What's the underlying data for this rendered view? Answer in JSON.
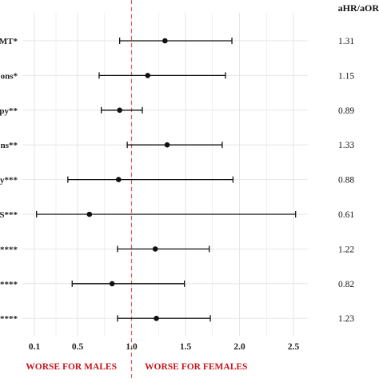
{
  "chart_data": {
    "type": "forest",
    "title": "",
    "column_header": "aHR/aOR",
    "rows": [
      {
        "label": "MT*",
        "estimate": 1.31,
        "ci_low": 0.89,
        "ci_high": 1.93,
        "value_label": "1.31"
      },
      {
        "label": "ons*",
        "estimate": 1.15,
        "ci_low": 0.7,
        "ci_high": 1.87,
        "value_label": "1.15"
      },
      {
        "label": "py**",
        "estimate": 0.89,
        "ci_low": 0.72,
        "ci_high": 1.1,
        "value_label": "0.89"
      },
      {
        "label": "ns**",
        "estimate": 1.33,
        "ci_low": 0.96,
        "ci_high": 1.84,
        "value_label": "1.33"
      },
      {
        "label": "y***",
        "estimate": 0.88,
        "ci_low": 0.41,
        "ci_high": 1.94,
        "value_label": "0.88"
      },
      {
        "label": "S***",
        "estimate": 0.61,
        "ci_low": 0.12,
        "ci_high": 2.52,
        "value_label": "0.61"
      },
      {
        "label": "s****",
        "estimate": 1.22,
        "ci_low": 0.87,
        "ci_high": 1.72,
        "value_label": "1.22"
      },
      {
        "label": "a****",
        "estimate": 0.82,
        "ci_low": 0.45,
        "ci_high": 1.49,
        "value_label": "0.82"
      },
      {
        "label": "*****",
        "estimate": 1.23,
        "ci_low": 0.87,
        "ci_high": 1.73,
        "value_label": "1.23"
      }
    ],
    "x_ticks": [
      {
        "value": 0.1,
        "label": "0.1"
      },
      {
        "value": 0.5,
        "label": "0.5"
      },
      {
        "value": 1.0,
        "label": "1.0"
      },
      {
        "value": 1.5,
        "label": "1.5"
      },
      {
        "value": 2.0,
        "label": "2.0"
      },
      {
        "value": 2.5,
        "label": "2.5"
      }
    ],
    "xlim": [
      0.1,
      2.75
    ],
    "reference_line": 1.0,
    "annotations": {
      "left": "WORSE FOR MALES",
      "right": "WORSE FOR FEMALES"
    },
    "grid": true,
    "colors": {
      "point": "#111111",
      "reference": "#e05a5a",
      "annotation": "#c8161d",
      "grid": "#e6e6e6"
    }
  }
}
